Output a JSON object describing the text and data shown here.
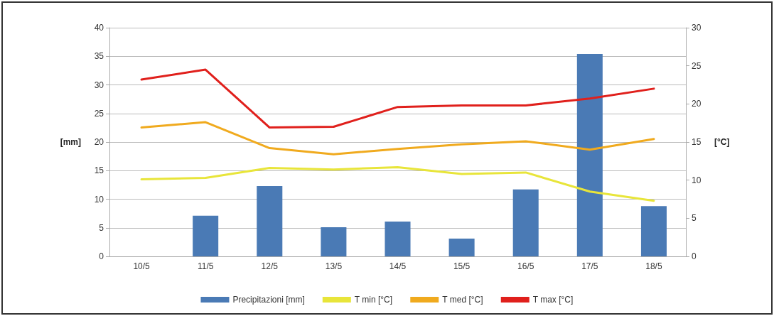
{
  "chart_data": {
    "type": "bar",
    "categories": [
      "10/5",
      "11/5",
      "12/5",
      "13/5",
      "14/5",
      "15/5",
      "16/5",
      "17/5",
      "18/5"
    ],
    "ylabel": "[mm]",
    "y2label": "[°C]",
    "series": [
      {
        "name": "Precipitazioni [mm]",
        "color": "#4a7ab5",
        "values": [
          0,
          7.1,
          12.3,
          5.1,
          6.1,
          3.1,
          11.7,
          35.4,
          8.8
        ]
      },
      {
        "name": "T min [°C]",
        "type": "line",
        "axis": "y2",
        "color": "#e8e53a",
        "values": [
          10.1,
          10.3,
          11.6,
          11.4,
          11.7,
          10.8,
          11.0,
          8.5,
          7.3
        ]
      },
      {
        "name": "T med [°C]",
        "type": "line",
        "axis": "y2",
        "color": "#f0aa1e",
        "values": [
          16.9,
          17.6,
          14.2,
          13.4,
          14.1,
          14.7,
          15.1,
          14.0,
          15.4
        ]
      },
      {
        "name": "T max [°C]",
        "type": "line",
        "axis": "y2",
        "color": "#e0201c",
        "values": [
          23.2,
          24.5,
          16.9,
          17.0,
          19.6,
          19.8,
          19.8,
          20.7,
          22.0
        ]
      }
    ],
    "ylim": [
      0,
      40
    ],
    "yticks": [
      0,
      5,
      10,
      15,
      20,
      25,
      30,
      35,
      40
    ],
    "y2lim": [
      0,
      30
    ],
    "y2ticks": [
      0,
      5,
      10,
      15,
      20,
      25,
      30
    ],
    "grid": "y",
    "legend": "bottom",
    "marker": "none",
    "line_style": "solid"
  }
}
